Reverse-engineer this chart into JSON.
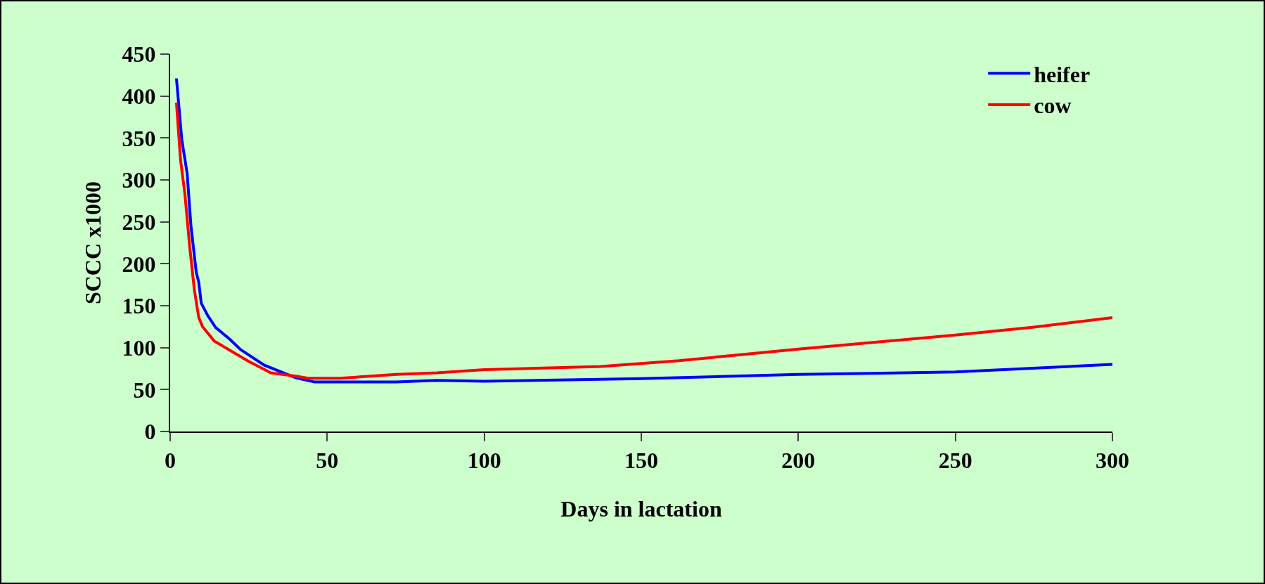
{
  "chart_data": {
    "type": "line",
    "xlabel": "Days in lactation",
    "ylabel": "SCCC x1000",
    "xlim": [
      0,
      300
    ],
    "xticks": [
      0,
      50,
      100,
      150,
      200,
      250,
      300
    ],
    "ylim": [
      0,
      450
    ],
    "yticks": [
      0,
      50,
      100,
      150,
      200,
      250,
      300,
      350,
      400,
      450
    ],
    "grid": false,
    "legend": "top right",
    "marker": "none",
    "line_style": "solid",
    "series": [
      {
        "name": "heifer",
        "color": "#0000ff",
        "x": [
          2,
          3.7,
          5.4,
          6.6,
          8.3,
          9.1,
          9.9,
          12,
          14.5,
          19,
          22.3,
          30,
          40,
          46,
          50,
          72,
          85,
          100,
          150,
          200,
          250,
          300
        ],
        "values": [
          421,
          348,
          308,
          246,
          190,
          178,
          153,
          138,
          124,
          110,
          98,
          79,
          64,
          59,
          59,
          59,
          61,
          60,
          63,
          68,
          71,
          80
        ]
      },
      {
        "name": "cow",
        "color": "#ff0000",
        "x": [
          2,
          3.3,
          4.7,
          6.2,
          7.7,
          9.1,
          10.3,
          14,
          19.4,
          24.8,
          30,
          32,
          40,
          44,
          54,
          72,
          85,
          100,
          137,
          162,
          200,
          250,
          275,
          300
        ],
        "values": [
          392,
          324,
          283,
          221,
          169,
          136,
          125,
          108,
          96,
          84,
          74,
          70,
          66,
          63.5,
          63.5,
          68,
          70,
          73.7,
          77.5,
          84.4,
          98.3,
          115,
          124.5,
          135.7
        ]
      }
    ]
  }
}
